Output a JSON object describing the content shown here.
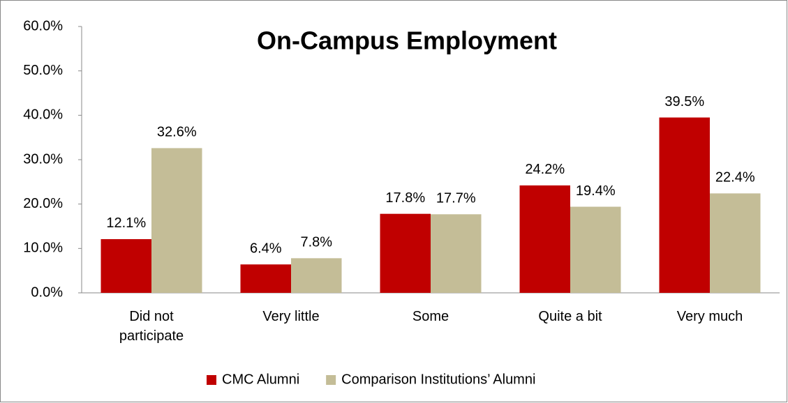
{
  "chart_data": {
    "type": "bar",
    "title": "On-Campus Employment",
    "categories": [
      "Did not participate",
      "Very little",
      "Some",
      "Quite a bit",
      "Very much"
    ],
    "series": [
      {
        "name": "CMC Alumni",
        "color": "#c00000",
        "values": [
          12.1,
          6.4,
          17.8,
          24.2,
          39.5
        ],
        "value_labels": [
          "12.1%",
          "6.4%",
          "17.8%",
          "24.2%",
          "39.5%"
        ]
      },
      {
        "name": "Comparison Institutions’ Alumni",
        "color": "#c4bd97",
        "values": [
          32.6,
          7.8,
          17.7,
          19.4,
          22.4
        ],
        "value_labels": [
          "32.6%",
          "7.8%",
          "17.7%",
          "19.4%",
          "22.4%"
        ]
      }
    ],
    "ylim": [
      0,
      60
    ],
    "yticks": [
      {
        "value": 0,
        "label": "0.0%"
      },
      {
        "value": 10,
        "label": "10.0%"
      },
      {
        "value": 20,
        "label": "20.0%"
      },
      {
        "value": 30,
        "label": "30.0%"
      },
      {
        "value": 40,
        "label": "40.0%"
      },
      {
        "value": 50,
        "label": "50.0%"
      },
      {
        "value": 60,
        "label": "60.0%"
      }
    ],
    "legend": "bottom"
  }
}
